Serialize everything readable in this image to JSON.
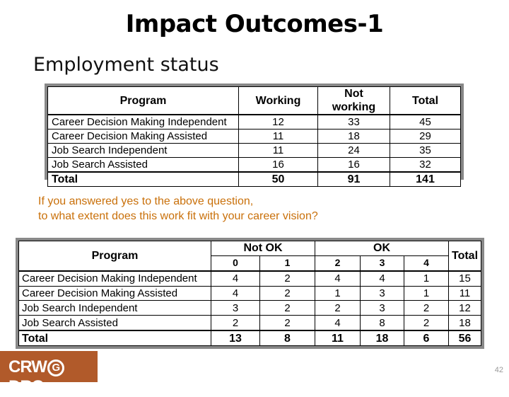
{
  "title": "Impact Outcomes-1",
  "subtitle": "Employment status",
  "table1": {
    "headers": [
      "Program",
      "Working",
      "Not working",
      "Total"
    ],
    "rows": [
      [
        "Career Decision Making Independent",
        "12",
        "33",
        "45"
      ],
      [
        "Career Decision Making Assisted",
        "11",
        "18",
        "29"
      ],
      [
        "Job Search Independent",
        "11",
        "24",
        "35"
      ],
      [
        "Job Search Assisted",
        "16",
        "16",
        "32"
      ]
    ],
    "total": [
      "Total",
      "50",
      "91",
      "141"
    ]
  },
  "question": {
    "line1": "If you answered yes to the above question,",
    "line2": "to what extent does this work fit with your career vision?"
  },
  "table2": {
    "program_header": "Program",
    "group_notok": "Not OK",
    "group_ok": "OK",
    "total_header": "Total",
    "scale": [
      "0",
      "1",
      "2",
      "3",
      "4"
    ],
    "rows": [
      [
        "Career Decision Making Independent",
        "4",
        "2",
        "4",
        "4",
        "1",
        "15"
      ],
      [
        "Career Decision Making Assisted",
        "4",
        "2",
        "1",
        "3",
        "1",
        "11"
      ],
      [
        "Job Search Independent",
        "3",
        "2",
        "2",
        "3",
        "2",
        "12"
      ],
      [
        "Job Search Assisted",
        "2",
        "2",
        "4",
        "8",
        "2",
        "18"
      ]
    ],
    "total": [
      "Total",
      "13",
      "8",
      "11",
      "18",
      "6",
      "56"
    ]
  },
  "logo": {
    "left": "CRW",
    "g": "G",
    "right": "DRC",
    "color": "#b15a2a"
  },
  "page_number": "42"
}
